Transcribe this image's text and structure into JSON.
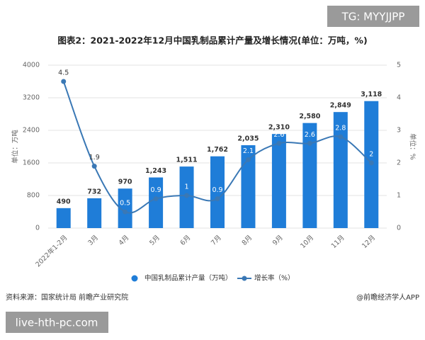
{
  "chart_data": {
    "type": "bar-line",
    "title": "图表2：2021-2022年12月中国乳制品累计产量及增长情况(单位：万吨，%)",
    "categories": [
      "2022年1-2月",
      "3月",
      "4月",
      "5月",
      "6月",
      "7月",
      "8月",
      "9月",
      "10月",
      "11月",
      "12月"
    ],
    "series": [
      {
        "name": "中国乳制品累计产量（万吨）",
        "type": "bar",
        "color": "#1f7dd8",
        "values": [
          490,
          732,
          970,
          1243,
          1511,
          1762,
          2035,
          2310,
          2580,
          2849,
          3118
        ],
        "value_labels": [
          "490",
          "732",
          "970",
          "1,243",
          "1,511",
          "1,762",
          "2,035",
          "2,310",
          "2,580",
          "2,849",
          "3,118"
        ]
      },
      {
        "name": "增长率（%）",
        "type": "line",
        "axis": "y2",
        "color": "#3a78b5",
        "values": [
          4.5,
          1.9,
          0.5,
          0.9,
          1,
          0.9,
          2.1,
          2.6,
          2.6,
          2.8,
          2
        ]
      }
    ],
    "ylabel": "单位：万吨",
    "y2label": "单位：%",
    "ylim": [
      0,
      4000
    ],
    "yticks": [
      0,
      800,
      1600,
      2400,
      3200,
      4000
    ],
    "y2lim": [
      0,
      5
    ],
    "y2ticks": [
      0,
      1,
      2,
      3,
      4,
      5
    ],
    "grid": true,
    "legend": "bottom",
    "source": "资料来源：国家统计局 前瞻产业研究院",
    "credit": "@前瞻经济学人APP"
  },
  "overlays": {
    "top_tag": "TG: MYYJJPP",
    "bottom_tag": "live-hth-pc.com"
  }
}
